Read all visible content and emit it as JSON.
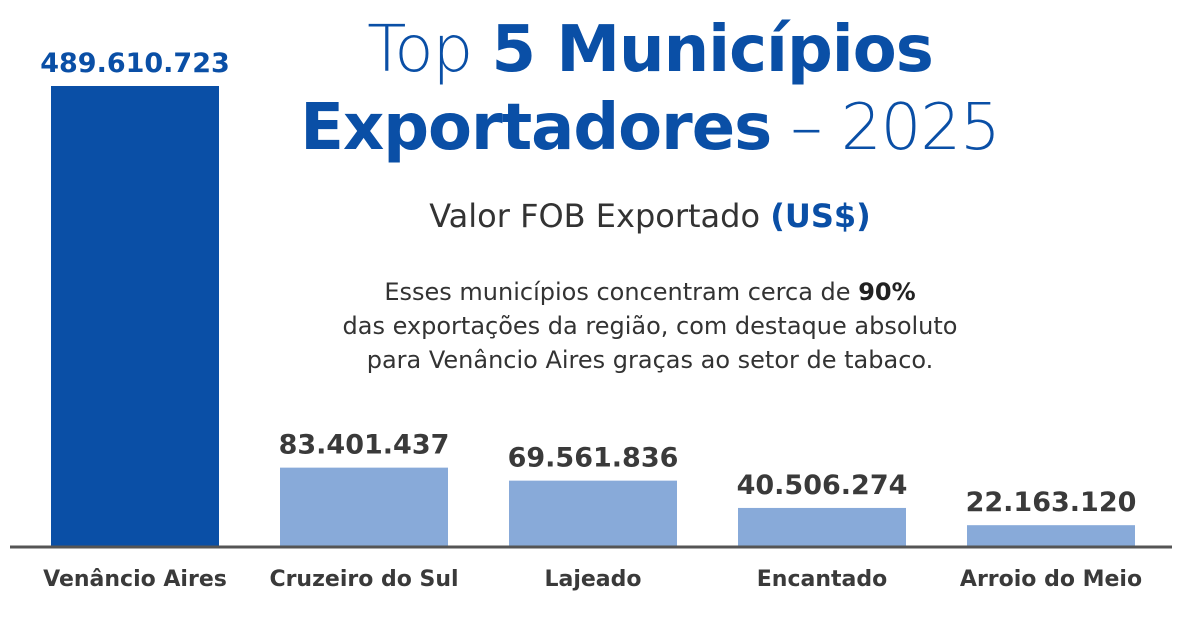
{
  "title": {
    "line1_light": "Top",
    "line1_bold": "5 Municípios",
    "line2_bold": "Exportadores",
    "line2_light": "– 2025"
  },
  "subtitle": {
    "text": "Valor FOB Exportado",
    "unit": "(US$)"
  },
  "note": {
    "line1_text": "Esses municípios concentram cerca de",
    "line1_bold": "90%",
    "line2": "das exportações da região, com destaque absoluto",
    "line3": "para Venâncio Aires graças ao setor de tabaco."
  },
  "colors": {
    "highlight_bar": "#0a4fa6",
    "other_bars": "#88aad9",
    "highlight_value_label": "#0a4fa6",
    "value_label": "#3a3a3a",
    "category_label": "#3a3a3a",
    "baseline": "#555555",
    "title": "#0a4fa6"
  },
  "chart_data": {
    "type": "bar",
    "categories": [
      "Venâncio Aires",
      "Cruzeiro do Sul",
      "Lajeado",
      "Encantado",
      "Arroio do Meio"
    ],
    "values": [
      489610723,
      83401437,
      69561836,
      40506274,
      22163120
    ],
    "value_labels": [
      "489.610.723",
      "83.401.437",
      "69.561.836",
      "40.506.274",
      "22.163.120"
    ],
    "highlight_index": 0,
    "title": "Top 5 Municípios Exportadores – 2025",
    "ylabel": "Valor FOB Exportado (US$)",
    "xlabel": "",
    "ylim": [
      0,
      489610723
    ],
    "grid": false,
    "legend": "none"
  }
}
